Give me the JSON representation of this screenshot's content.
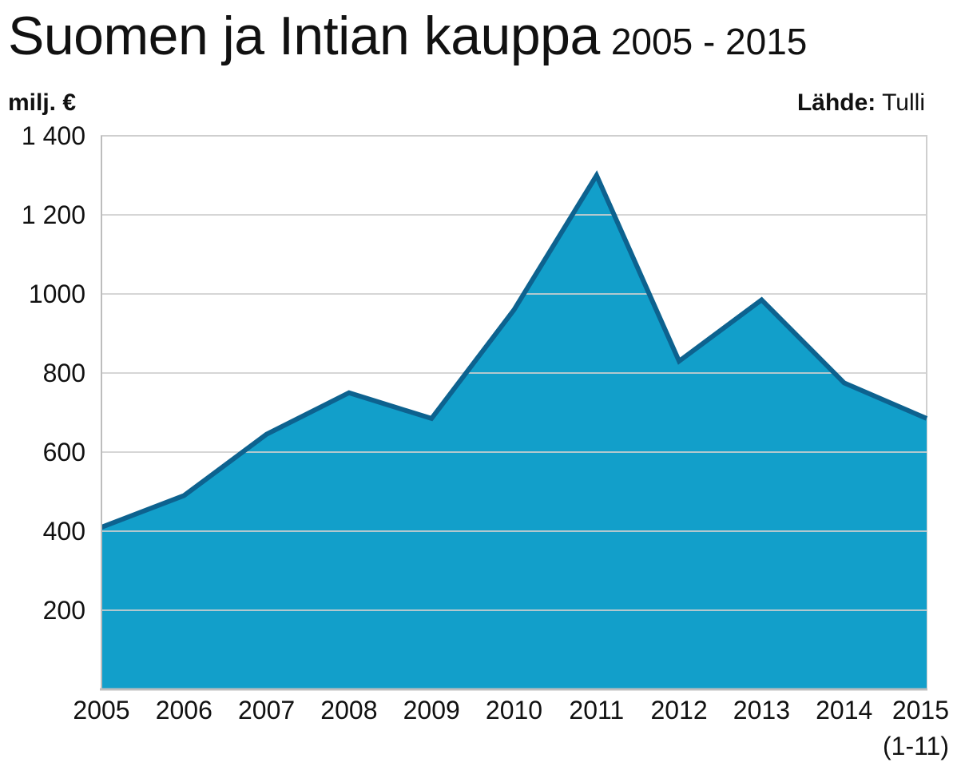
{
  "header": {
    "title": "Suomen ja Intian kauppa",
    "years": "2005 - 2015",
    "unit": "milj. €",
    "source_label": "Lähde:",
    "source_value": "Tulli"
  },
  "chart_data": {
    "type": "area",
    "title": "Suomen ja Intian kauppa",
    "subtitle": "2005 - 2015",
    "ylabel": "milj. €",
    "xlabel": "",
    "categories": [
      "2005",
      "2006",
      "2007",
      "2008",
      "2009",
      "2010",
      "2011",
      "2012",
      "2013",
      "2014",
      "2015"
    ],
    "category_sublabels": [
      "",
      "",
      "",
      "",
      "",
      "",
      "",
      "",
      "",
      "",
      "(1-11)"
    ],
    "values": [
      410,
      490,
      645,
      750,
      685,
      960,
      1300,
      830,
      985,
      775,
      685
    ],
    "ylim": [
      0,
      1400
    ],
    "yticks": [
      200,
      400,
      600,
      800,
      1000,
      1200,
      1400
    ],
    "ytick_labels": [
      "200",
      "400",
      "600",
      "800",
      "1000",
      "1 200",
      "1 400"
    ],
    "grid": true,
    "fill_color": "#129fca",
    "line_color": "#0d628f",
    "grid_color": "#cfcfcf"
  }
}
